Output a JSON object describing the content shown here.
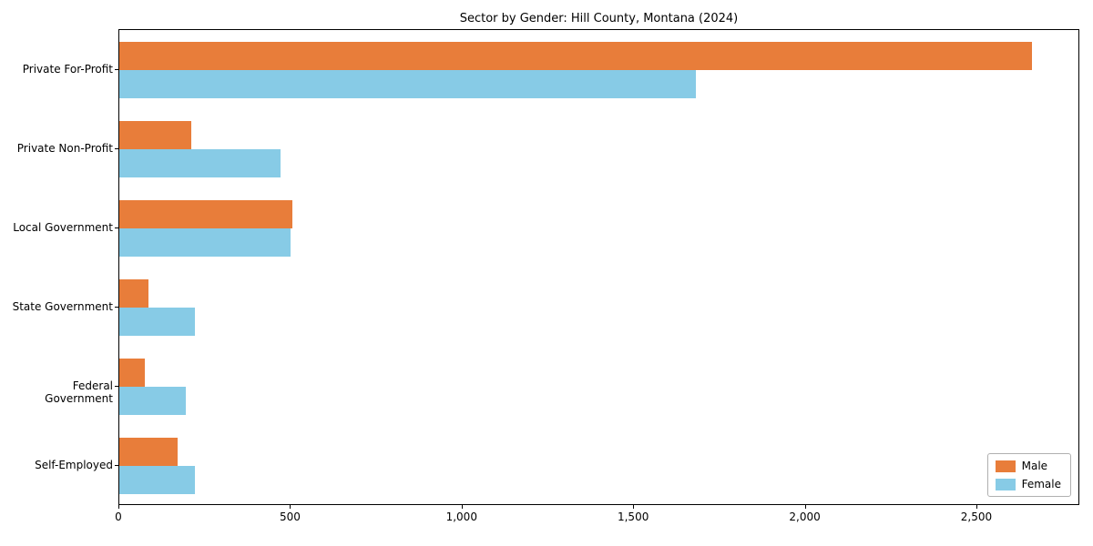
{
  "chart_data": {
    "type": "bar",
    "orientation": "horizontal",
    "title": "Sector by Gender: Hill County, Montana (2024)",
    "categories": [
      "Private For-Profit",
      "Private Non-Profit",
      "Local Government",
      "State Government",
      "Federal Government",
      "Self-Employed"
    ],
    "series": [
      {
        "name": "Male",
        "color": "#e87d3a",
        "values": [
          2660,
          210,
          505,
          85,
          75,
          170
        ]
      },
      {
        "name": "Female",
        "color": "#87cbe6",
        "values": [
          1680,
          470,
          500,
          220,
          195,
          220
        ]
      }
    ],
    "xlim": [
      0,
      2800
    ],
    "xticks": [
      0,
      500,
      1000,
      1500,
      2000,
      2500
    ],
    "xtick_labels": [
      "0",
      "500",
      "1,000",
      "1,500",
      "2,000",
      "2,500"
    ],
    "grid": false,
    "legend": {
      "position": "lower right",
      "entries": [
        "Male",
        "Female"
      ]
    }
  }
}
